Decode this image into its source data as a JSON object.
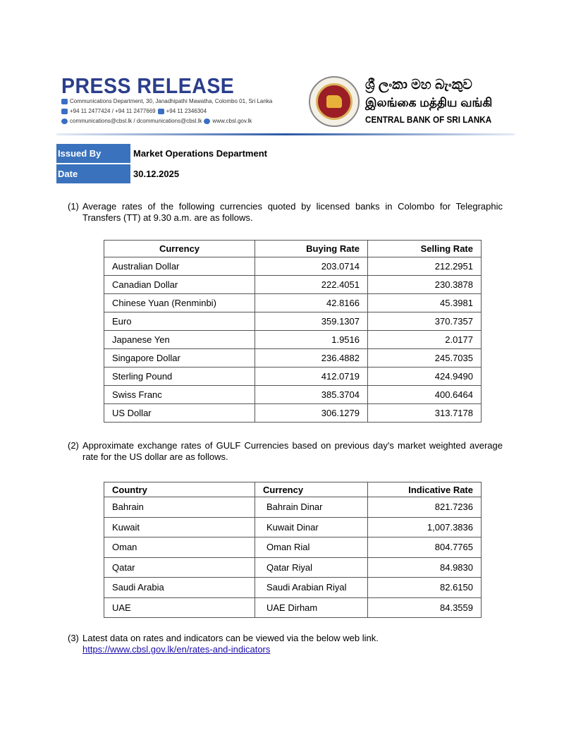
{
  "header": {
    "title": "PRESS RELEASE",
    "address": "Communications Department, 30, Janadhipathi Mawatha, Colombo 01, Sri Lanka",
    "phones": "+94 11 2477424 / +94 11 2477669",
    "fax": "+94 11  2346304",
    "emails": "communications@cbsl.lk / dcommunications@cbsl.lk",
    "website": "www.cbsl.gov.lk",
    "bank_name_sinhala": "ශ්‍රී ලංකා මහ බැංකුව",
    "bank_name_tamil": "இலங்கை மத்திய வங்கி",
    "bank_name_english": "CENTRAL BANK OF SRI LANKA",
    "accent_color": "#2b3e8c"
  },
  "meta": {
    "issued_by_label": "Issued By",
    "issued_by_value": "Market Operations Department",
    "date_label": "Date",
    "date_value": "30.12.2025"
  },
  "section1": {
    "number": "(1)",
    "text": "Average rates of the following currencies quoted by licensed banks in Colombo for Telegraphic Transfers (TT) at 9.30 a.m. are as follows.",
    "headers": [
      "Currency",
      "Buying Rate",
      "Selling Rate"
    ],
    "rows": [
      [
        "Australian Dollar",
        "203.0714",
        "212.2951"
      ],
      [
        "Canadian Dollar",
        "222.4051",
        "230.3878"
      ],
      [
        "Chinese Yuan (Renminbi)",
        "42.8166",
        "45.3981"
      ],
      [
        "Euro",
        "359.1307",
        "370.7357"
      ],
      [
        "Japanese Yen",
        "1.9516",
        "2.0177"
      ],
      [
        "Singapore Dollar",
        "236.4882",
        "245.7035"
      ],
      [
        "Sterling Pound",
        "412.0719",
        "424.9490"
      ],
      [
        "Swiss Franc",
        "385.3704",
        "400.6464"
      ],
      [
        "US Dollar",
        "306.1279",
        "313.7178"
      ]
    ]
  },
  "section2": {
    "number": "(2)",
    "text": "Approximate exchange rates of GULF Currencies based on previous day's market weighted average rate for the US dollar are as follows.",
    "headers": [
      "Country",
      "Currency",
      "Indicative Rate"
    ],
    "rows": [
      [
        "Bahrain",
        "Bahrain Dinar",
        "821.7236"
      ],
      [
        "Kuwait",
        "Kuwait Dinar",
        "1,007.3836"
      ],
      [
        "Oman",
        "Oman Rial",
        "804.7765"
      ],
      [
        "Qatar",
        "Qatar Riyal",
        "84.9830"
      ],
      [
        "Saudi Arabia",
        "Saudi Arabian Riyal",
        "82.6150"
      ],
      [
        "UAE",
        "UAE Dirham",
        "84.3559"
      ]
    ]
  },
  "section3": {
    "number": "(3)",
    "text": "Latest data on rates and indicators can be viewed via the below web link.",
    "link": "https://www.cbsl.gov.lk/en/rates-and-indicators"
  }
}
